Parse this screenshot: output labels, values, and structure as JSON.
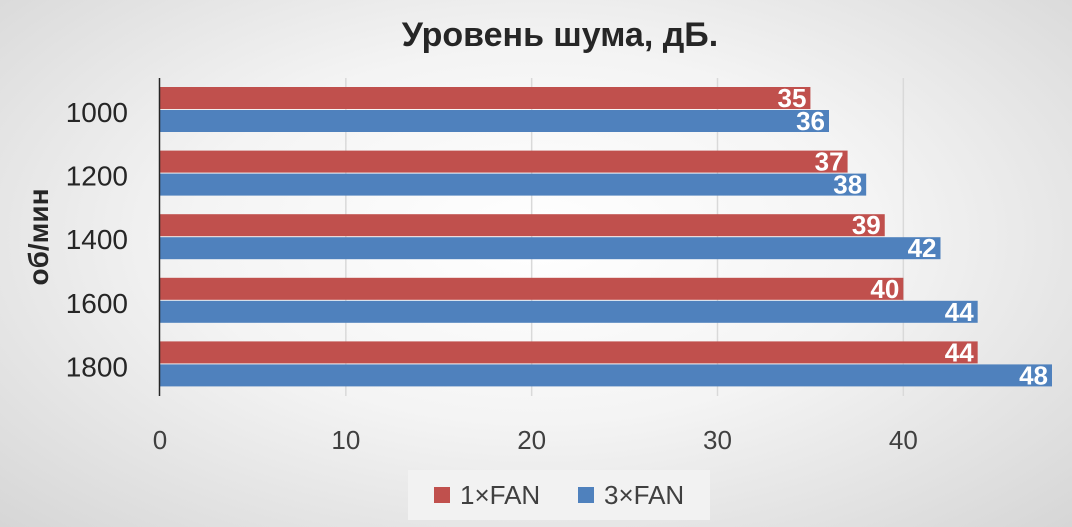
{
  "chart_data": {
    "type": "bar",
    "orientation": "horizontal",
    "title": "Уровень шума, дБ.",
    "ylabel": "об/мин",
    "xlabel": "",
    "categories": [
      "1000",
      "1200",
      "1400",
      "1600",
      "1800"
    ],
    "series": [
      {
        "name": "1×FAN",
        "color": "#c0504d",
        "values": [
          35,
          37,
          39,
          40,
          44
        ]
      },
      {
        "name": "3×FAN",
        "color": "#4f81bd",
        "values": [
          36,
          38,
          42,
          44,
          48
        ]
      }
    ],
    "xticks": [
      "0",
      "10",
      "20",
      "30",
      "40"
    ],
    "xlim": [
      0,
      48
    ],
    "grid": "vertical",
    "legend": "bottom"
  }
}
